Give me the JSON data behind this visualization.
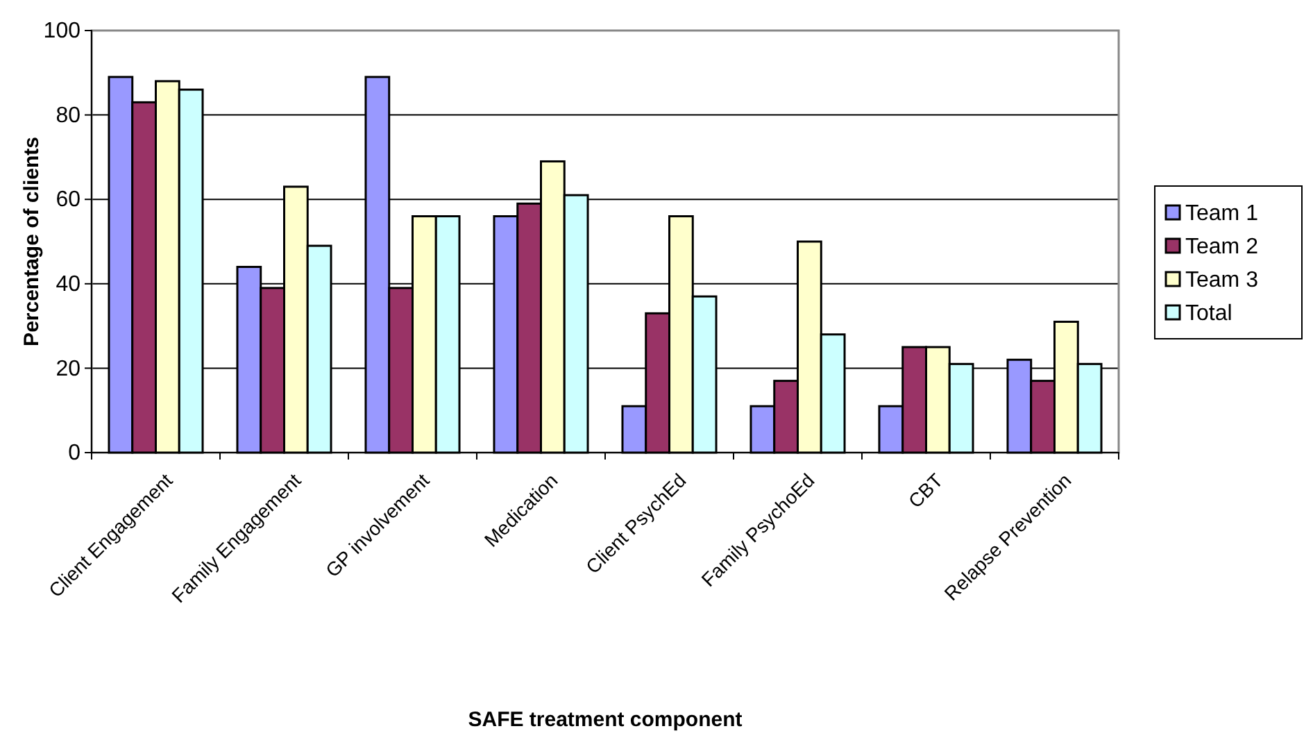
{
  "chart_data": {
    "type": "bar",
    "xlabel": "SAFE treatment component",
    "ylabel": "Percentage of clients",
    "categories": [
      "Client Engagement",
      "Family Engagement",
      "GP involvement",
      "Medication",
      "Client PsychEd",
      "Family PsychoEd",
      "CBT",
      "Relapse Prevention"
    ],
    "series": [
      {
        "name": "Team 1",
        "color": "#9999ff",
        "values": [
          89,
          44,
          89,
          56,
          11,
          11,
          11,
          22
        ]
      },
      {
        "name": "Team 2",
        "color": "#993366",
        "values": [
          83,
          39,
          39,
          59,
          33,
          17,
          25,
          17
        ]
      },
      {
        "name": "Team 3",
        "color": "#ffffcc",
        "values": [
          88,
          63,
          56,
          69,
          56,
          50,
          25,
          31
        ]
      },
      {
        "name": "Total",
        "color": "#ccffff",
        "values": [
          86,
          49,
          56,
          61,
          37,
          28,
          21,
          21
        ]
      }
    ],
    "ylim": [
      0,
      100
    ],
    "yticks": [
      0,
      20,
      40,
      60,
      80,
      100
    ],
    "grid": "y",
    "legend": "right"
  }
}
